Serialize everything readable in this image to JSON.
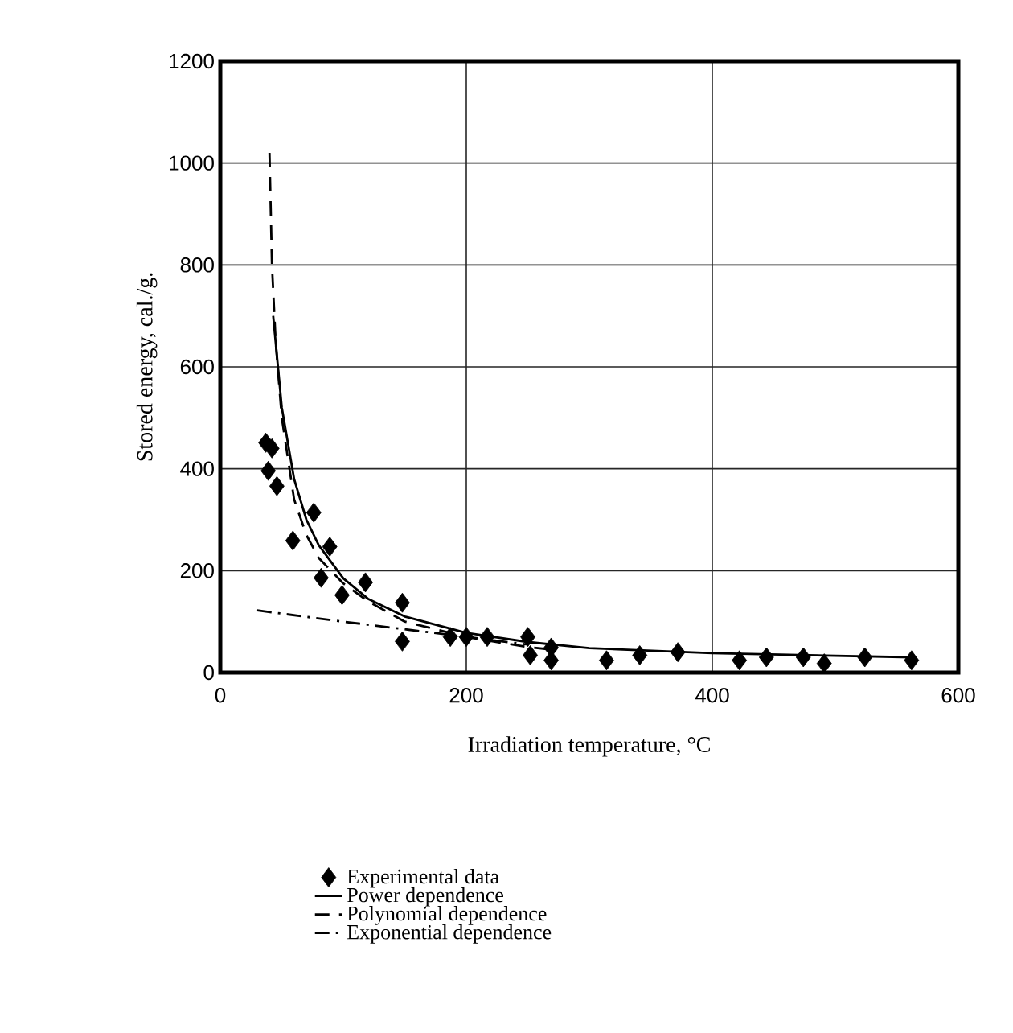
{
  "chart_data": {
    "type": "scatter",
    "xlabel": "Irradiation temperature, °C",
    "ylabel": "Stored energy, cal./g.",
    "xlim": [
      0,
      600
    ],
    "ylim": [
      0,
      1200
    ],
    "xticks": [
      0,
      200,
      400,
      600
    ],
    "yticks": [
      0,
      200,
      400,
      600,
      800,
      1000,
      1200
    ],
    "grid": true,
    "legend": "bottom",
    "series": [
      {
        "name": "Experimental data",
        "marker": "diamond",
        "color": "#000000",
        "x": [
          37,
          42,
          39,
          46,
          76,
          59,
          89,
          82,
          118,
          99,
          148,
          148,
          187,
          200,
          217,
          250,
          252,
          269,
          269,
          314,
          341,
          372,
          422,
          444,
          474,
          491,
          524,
          562
        ],
        "values": [
          451,
          440,
          396,
          366,
          314,
          259,
          247,
          186,
          177,
          152,
          137,
          61,
          70,
          70,
          70,
          70,
          34,
          49,
          24,
          24,
          34,
          40,
          24,
          30,
          30,
          18,
          30,
          24
        ]
      },
      {
        "name": "Power dependence",
        "type": "line",
        "line_style": "solid",
        "color": "#000000",
        "x": [
          43,
          50,
          60,
          70,
          80,
          100,
          120,
          150,
          200,
          250,
          300,
          400,
          500,
          562
        ],
        "values": [
          700,
          520,
          380,
          300,
          250,
          185,
          145,
          110,
          78,
          60,
          48,
          38,
          33,
          30
        ]
      },
      {
        "name": "Polynomial dependence",
        "type": "line",
        "line_style": "dashed",
        "color": "#000000",
        "x": [
          40,
          42,
          45,
          50,
          60,
          70,
          80,
          100,
          120,
          150,
          200,
          250,
          270
        ],
        "values": [
          1020,
          800,
          650,
          500,
          340,
          270,
          225,
          175,
          140,
          100,
          70,
          50,
          45
        ]
      },
      {
        "name": "Exponential dependence",
        "type": "line",
        "line_style": "dashdot",
        "color": "#000000",
        "x": [
          30,
          100,
          170,
          250
        ],
        "values": [
          122,
          100,
          79,
          55
        ]
      }
    ]
  }
}
